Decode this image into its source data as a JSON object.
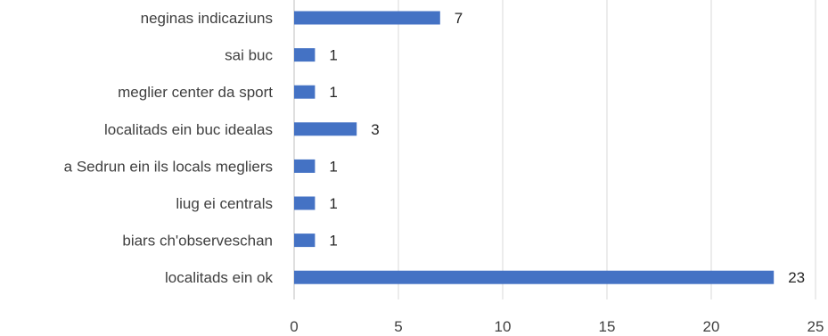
{
  "chart_data": {
    "type": "bar",
    "orientation": "horizontal",
    "categories": [
      "neginas indicaziuns",
      "sai buc",
      "meglier center da sport",
      "localitads ein buc idealas",
      "a Sedrun ein ils locals megliers",
      "liug ei centrals",
      "biars ch'observeschan",
      "localitads ein ok"
    ],
    "values": [
      7,
      1,
      1,
      3,
      1,
      1,
      1,
      23
    ],
    "xlim": [
      0,
      25
    ],
    "xticks": [
      0,
      5,
      10,
      15,
      20,
      25
    ],
    "grid": true,
    "data_labels": true,
    "bar_color": "#4472c4"
  }
}
